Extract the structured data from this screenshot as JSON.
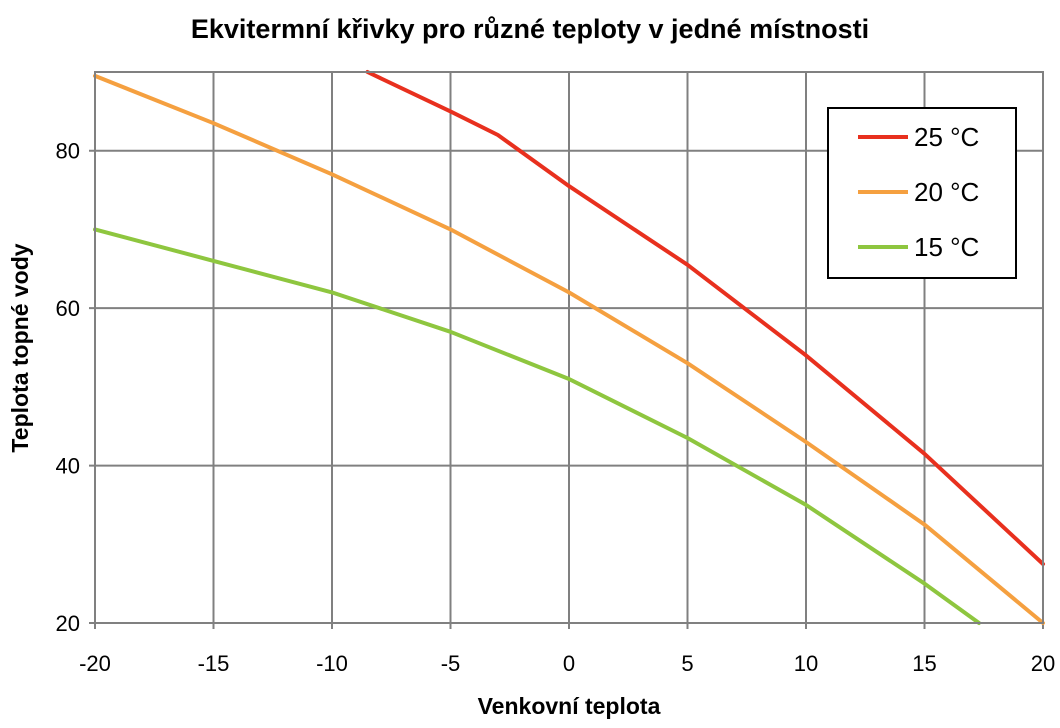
{
  "chart_data": {
    "type": "line",
    "title": "Ekvitermní křivky pro různé teploty v jedné místnosti",
    "xlabel": "Venkovní teplota",
    "ylabel": "Teplota topné vody",
    "xlim": [
      -20,
      20
    ],
    "ylim": [
      20,
      90
    ],
    "xticks": [
      -20,
      -15,
      -10,
      -5,
      0,
      5,
      10,
      15,
      20
    ],
    "yticks": [
      20,
      40,
      60,
      80
    ],
    "grid": true,
    "legend_position": "top-right",
    "series": [
      {
        "name": "25 °C",
        "color": "#e8301e",
        "x": [
          -8.5,
          -5,
          -3,
          0,
          5,
          10,
          15,
          20
        ],
        "y": [
          90,
          85,
          82,
          75.5,
          65.5,
          54,
          41.5,
          27.5
        ]
      },
      {
        "name": "20 °C",
        "color": "#f5a040",
        "x": [
          -20,
          -15,
          -10,
          -5,
          0,
          5,
          10,
          15,
          20
        ],
        "y": [
          89.5,
          83.5,
          77,
          70,
          62,
          53,
          43,
          32.5,
          20
        ]
      },
      {
        "name": "15 °C",
        "color": "#8ec63f",
        "x": [
          -20,
          -15,
          -10,
          -5,
          0,
          5,
          10,
          15,
          17.3
        ],
        "y": [
          70,
          66,
          62,
          57,
          51,
          43.5,
          35,
          25,
          20
        ]
      }
    ]
  }
}
